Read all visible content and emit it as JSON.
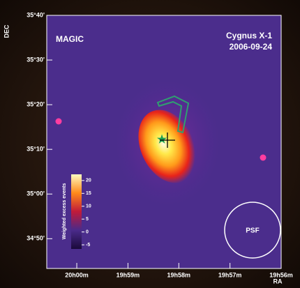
{
  "chart_data": {
    "type": "skymap",
    "title": "MAGIC",
    "source": "Cygnus X-1",
    "date": "2006-09-24",
    "x_label": "RA",
    "y_label": "DEC",
    "xlim": [
      20.0098,
      19.9333
    ],
    "ylim": [
      34.7222,
      35.6667
    ],
    "xticks": [
      {
        "value": 20.0,
        "label": "20h00m"
      },
      {
        "value": 19.9833,
        "label": "19h59m"
      },
      {
        "value": 19.9667,
        "label": "19h58m"
      },
      {
        "value": 19.95,
        "label": "19h57m"
      },
      {
        "value": 19.9333,
        "label": "19h56m"
      }
    ],
    "yticks": [
      {
        "value": 35.6667,
        "label": "35°40'"
      },
      {
        "value": 35.5,
        "label": "35°30'"
      },
      {
        "value": 35.3333,
        "label": "35°20'"
      },
      {
        "value": 35.1667,
        "label": "35°10'"
      },
      {
        "value": 35.0,
        "label": "35°00'"
      },
      {
        "value": 34.8333,
        "label": "34°50'"
      }
    ],
    "colorbar": {
      "label": "Weighted excess events",
      "lim": [
        -6.6,
        22.4
      ],
      "ticks": [
        20,
        15,
        10,
        5,
        0,
        -5
      ]
    },
    "psf_label": "PSF"
  }
}
